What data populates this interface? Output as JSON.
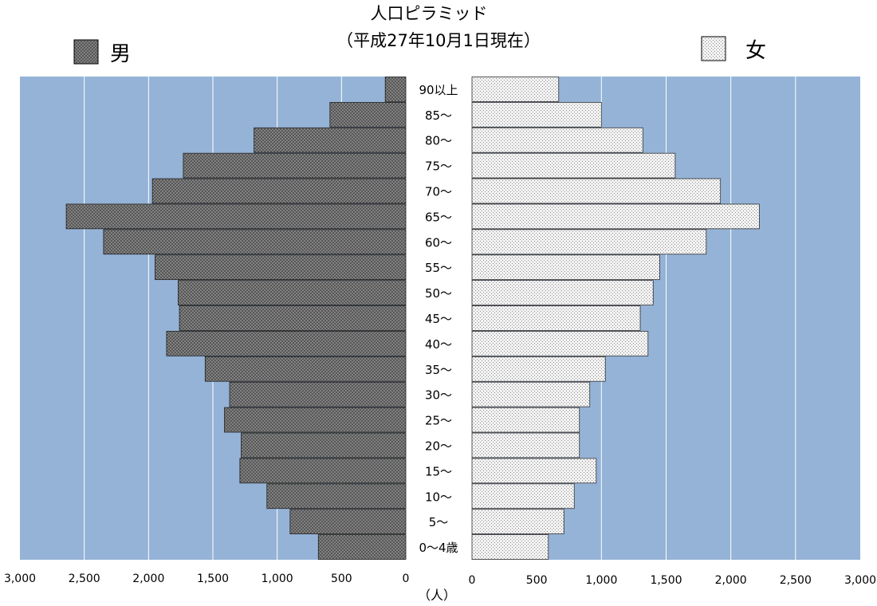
{
  "chart_data": {
    "type": "bar",
    "title": "人口ピラミッド",
    "subtitle": "（平成27年10月1日現在）",
    "unit_label": "（人）",
    "categories": [
      "90以上",
      "85～",
      "80～",
      "75～",
      "70～",
      "65～",
      "60～",
      "55～",
      "50～",
      "45～",
      "40～",
      "35～",
      "30～",
      "25～",
      "20～",
      "15～",
      "10～",
      "5～",
      "0～4歳"
    ],
    "series": [
      {
        "name": "男",
        "values": [
          160,
          590,
          1180,
          1730,
          1970,
          2640,
          2350,
          1950,
          1770,
          1760,
          1860,
          1560,
          1370,
          1410,
          1280,
          1290,
          1080,
          900,
          680
        ]
      },
      {
        "name": "女",
        "values": [
          670,
          1000,
          1320,
          1570,
          1920,
          2220,
          1810,
          1450,
          1400,
          1300,
          1360,
          1030,
          910,
          830,
          830,
          960,
          790,
          710,
          590
        ]
      }
    ],
    "left_ticks": [
      "3,000",
      "2,500",
      "2,000",
      "1,500",
      "1,000",
      "500",
      "0"
    ],
    "right_ticks": [
      "0",
      "500",
      "1,000",
      "1,500",
      "2,000",
      "2,500",
      "3,000"
    ],
    "xlim": [
      0,
      3000
    ],
    "grid": true,
    "colors": {
      "plot_bg": "#95b3d7",
      "male": "#5a5a5a",
      "female": "#eeeeee"
    }
  }
}
